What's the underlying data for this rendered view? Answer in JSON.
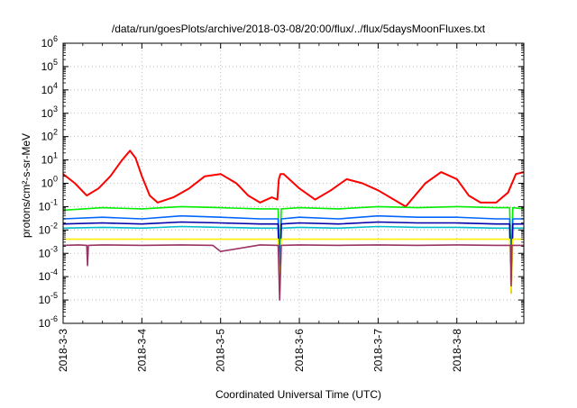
{
  "chart_data": {
    "type": "line",
    "title": "/data/run/goesPlots/archive/2018-03-08/20:00/flux/../flux/5daysMoonFluxes.txt",
    "xlabel": "Coordinated Universal Time (UTC)",
    "ylabel": "protons/cm²-s-sr-MeV",
    "yscale": "log",
    "ylim": [
      1e-06,
      1000000.0
    ],
    "xlim": [
      0,
      5.85
    ],
    "grid": true,
    "legend": "none",
    "x_ticks": [
      {
        "value": 0,
        "label": "2018-3-3"
      },
      {
        "value": 1,
        "label": "2018-3-4"
      },
      {
        "value": 2,
        "label": "2018-3-5"
      },
      {
        "value": 3,
        "label": "2018-3-6"
      },
      {
        "value": 4,
        "label": "2018-3-7"
      },
      {
        "value": 5,
        "label": "2018-3-8"
      }
    ],
    "y_ticks": [
      {
        "value": 1e-06,
        "base": "10",
        "exp": "-6"
      },
      {
        "value": 1e-05,
        "base": "10",
        "exp": "-5"
      },
      {
        "value": 0.0001,
        "base": "10",
        "exp": "-4"
      },
      {
        "value": 0.001,
        "base": "10",
        "exp": "-3"
      },
      {
        "value": 0.01,
        "base": "10",
        "exp": "-2"
      },
      {
        "value": 0.1,
        "base": "10",
        "exp": "-1"
      },
      {
        "value": 1,
        "base": "10",
        "exp": "0"
      },
      {
        "value": 10,
        "base": "10",
        "exp": "1"
      },
      {
        "value": 100,
        "base": "10",
        "exp": "2"
      },
      {
        "value": 1000,
        "base": "10",
        "exp": "3"
      },
      {
        "value": 10000,
        "base": "10",
        "exp": "4"
      },
      {
        "value": 100000,
        "base": "10",
        "exp": "5"
      },
      {
        "value": 1000000,
        "base": "10",
        "exp": "6"
      }
    ],
    "series": [
      {
        "color": "#ff0000",
        "width": 2.0,
        "x": [
          0,
          0.15,
          0.3,
          0.45,
          0.6,
          0.75,
          0.85,
          0.92,
          1.0,
          1.1,
          1.2,
          1.4,
          1.6,
          1.8,
          2.0,
          2.2,
          2.35,
          2.5,
          2.65,
          2.72,
          2.74,
          2.76,
          2.8,
          3.0,
          3.2,
          3.4,
          3.6,
          3.8,
          4.0,
          4.2,
          4.35,
          4.5,
          4.6,
          4.8,
          5.0,
          5.15,
          5.3,
          5.5,
          5.65,
          5.75,
          5.85
        ],
        "y": [
          2.5,
          1.0,
          0.3,
          0.6,
          2.0,
          10,
          25,
          12,
          2.0,
          0.3,
          0.15,
          0.25,
          0.6,
          2.0,
          2.5,
          1.0,
          0.3,
          0.15,
          0.25,
          0.2,
          1.5,
          2.5,
          2.5,
          0.6,
          0.2,
          0.5,
          1.5,
          1.0,
          0.5,
          0.2,
          0.1,
          0.4,
          1.0,
          3.0,
          1.5,
          0.3,
          0.15,
          0.15,
          0.4,
          2.5,
          3.0
        ]
      },
      {
        "color": "#00ee00",
        "width": 1.6,
        "x": [
          0,
          0.5,
          1.0,
          1.5,
          2.0,
          2.5,
          2.73,
          2.75,
          2.77,
          3.0,
          3.5,
          4.0,
          4.5,
          5.0,
          5.5,
          5.67,
          5.69,
          5.71,
          5.85
        ],
        "y": [
          0.07,
          0.09,
          0.08,
          0.1,
          0.09,
          0.08,
          0.08,
          0.0003,
          0.08,
          0.09,
          0.08,
          0.1,
          0.09,
          0.1,
          0.09,
          0.09,
          0.0003,
          0.09,
          0.08
        ]
      },
      {
        "color": "#0066ff",
        "width": 1.6,
        "x": [
          0,
          0.5,
          1.0,
          1.5,
          2.0,
          2.5,
          2.73,
          2.75,
          2.77,
          3.0,
          3.5,
          4.0,
          4.5,
          5.0,
          5.5,
          5.67,
          5.69,
          5.71,
          5.85
        ],
        "y": [
          0.03,
          0.035,
          0.03,
          0.04,
          0.035,
          0.03,
          0.03,
          0.0001,
          0.03,
          0.035,
          0.03,
          0.04,
          0.035,
          0.035,
          0.03,
          0.03,
          0.0001,
          0.03,
          0.03
        ]
      },
      {
        "color": "#00bbcc",
        "width": 1.6,
        "x": [
          0,
          0.5,
          1.0,
          1.5,
          2.0,
          2.5,
          2.73,
          2.75,
          2.77,
          3.0,
          3.5,
          4.0,
          4.5,
          5.0,
          5.5,
          5.67,
          5.69,
          5.71,
          5.85
        ],
        "y": [
          0.012,
          0.013,
          0.012,
          0.014,
          0.013,
          0.012,
          0.012,
          3e-05,
          0.012,
          0.013,
          0.012,
          0.014,
          0.013,
          0.013,
          0.012,
          0.012,
          3e-05,
          0.012,
          0.012
        ]
      },
      {
        "color": "#0000aa",
        "width": 1.6,
        "x": [
          0,
          0.5,
          1.0,
          1.5,
          2.0,
          2.5,
          2.73,
          2.75,
          2.77,
          3.0,
          3.5,
          4.0,
          4.5,
          5.0,
          5.5,
          5.67,
          5.69,
          5.71,
          5.85
        ],
        "y": [
          0.018,
          0.02,
          0.018,
          0.022,
          0.02,
          0.018,
          0.018,
          2e-05,
          0.018,
          0.02,
          0.018,
          0.022,
          0.02,
          0.02,
          0.018,
          0.018,
          2e-05,
          0.018,
          0.018
        ]
      },
      {
        "color": "#ffee00",
        "width": 1.6,
        "x": [
          0,
          0.5,
          1.0,
          1.5,
          2.0,
          2.5,
          2.73,
          2.75,
          2.77,
          3.0,
          3.5,
          4.0,
          4.5,
          5.0,
          5.5,
          5.67,
          5.69,
          5.71,
          5.85
        ],
        "y": [
          0.004,
          0.004,
          0.004,
          0.004,
          0.004,
          0.004,
          0.004,
          2e-05,
          0.004,
          0.004,
          0.004,
          0.004,
          0.004,
          0.004,
          0.004,
          0.004,
          2e-05,
          0.004,
          0.004
        ]
      },
      {
        "color": "#993366",
        "width": 1.6,
        "x": [
          0,
          0.2,
          0.3,
          0.31,
          0.32,
          0.5,
          1.0,
          1.5,
          1.9,
          2.0,
          2.5,
          2.73,
          2.75,
          2.77,
          3.0,
          3.5,
          4.0,
          4.5,
          5.0,
          5.5,
          5.68,
          5.69,
          5.7,
          5.85
        ],
        "y": [
          0.0022,
          0.0023,
          0.0022,
          0.0003,
          0.0022,
          0.0023,
          0.0022,
          0.0023,
          0.0022,
          0.0012,
          0.0023,
          0.0022,
          1e-05,
          0.0022,
          0.0023,
          0.0022,
          0.0023,
          0.0022,
          0.0023,
          0.0022,
          0.0022,
          4e-05,
          0.0022,
          0.0022
        ]
      }
    ]
  }
}
